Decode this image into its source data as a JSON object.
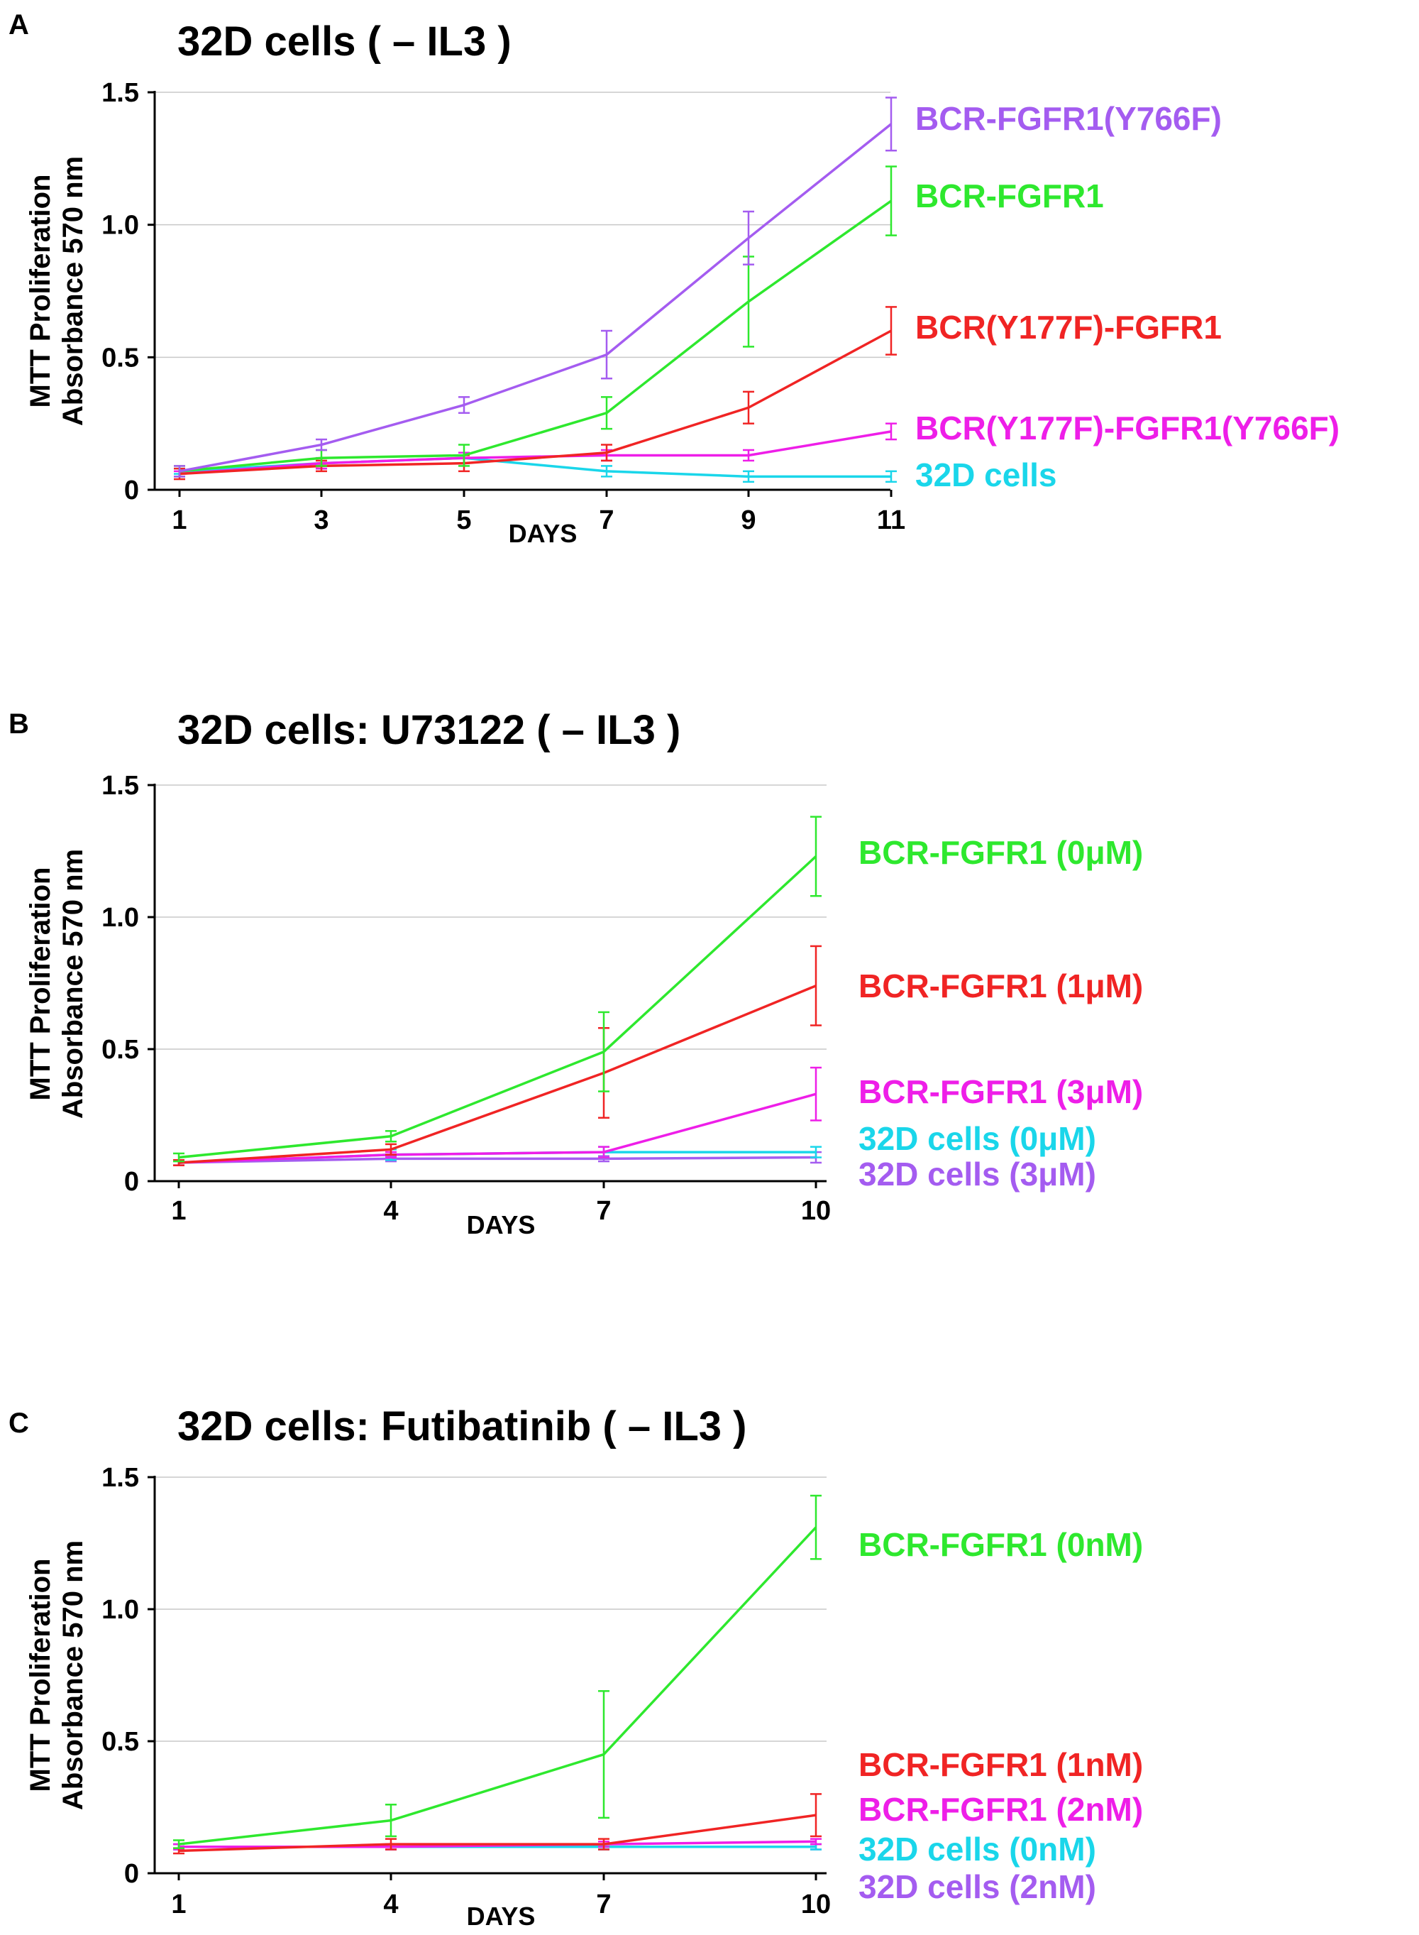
{
  "chart_data": [
    {
      "type": "line",
      "panel_letter": "A",
      "title": "32D cells ( – IL3 )",
      "xlabel": "DAYS",
      "ylabel_lines": [
        "MTT Proliferation",
        "Absorbance 570 nm"
      ],
      "x": [
        1,
        3,
        5,
        7,
        9,
        11
      ],
      "x_ticks": [
        "1",
        "3",
        "5",
        "7",
        "9",
        "11"
      ],
      "ylim": [
        0,
        1.5
      ],
      "y_ticks": [
        "0",
        "0.5",
        "1.0",
        "1.5"
      ],
      "grid": true,
      "series": [
        {
          "name": "BCR-FGFR1(Y766F)",
          "color": "#a45cf0",
          "values": [
            0.07,
            0.17,
            0.32,
            0.51,
            0.95,
            1.38
          ],
          "errors": [
            0.02,
            0.02,
            0.03,
            0.09,
            0.1,
            0.1
          ]
        },
        {
          "name": "BCR-FGFR1",
          "color": "#2ee82e",
          "values": [
            0.07,
            0.12,
            0.13,
            0.29,
            0.71,
            1.09
          ],
          "errors": [
            0.02,
            0.03,
            0.04,
            0.06,
            0.17,
            0.13
          ]
        },
        {
          "name": "BCR(Y177F)-FGFR1",
          "color": "#f02424",
          "values": [
            0.06,
            0.09,
            0.1,
            0.14,
            0.31,
            0.6
          ],
          "errors": [
            0.02,
            0.02,
            0.03,
            0.03,
            0.06,
            0.09
          ]
        },
        {
          "name": "BCR(Y177F)-FGFR1(Y766F)",
          "color": "#ee1ee8",
          "values": [
            0.06,
            0.1,
            0.12,
            0.13,
            0.13,
            0.22
          ],
          "errors": [
            0.01,
            0.02,
            0.02,
            0.02,
            0.02,
            0.03
          ]
        },
        {
          "name": "32D cells",
          "color": "#1ad6ea",
          "values": [
            0.07,
            0.1,
            0.12,
            0.07,
            0.05,
            0.05
          ],
          "errors": [
            0.01,
            0.02,
            0.02,
            0.02,
            0.02,
            0.02
          ]
        }
      ]
    },
    {
      "type": "line",
      "panel_letter": "B",
      "title": "32D cells: U73122  ( – IL3 )",
      "xlabel": "DAYS",
      "ylabel_lines": [
        "MTT Proliferation",
        "Absorbance 570 nm"
      ],
      "x": [
        1,
        4,
        7,
        10
      ],
      "x_ticks": [
        "1",
        "4",
        "7",
        "10"
      ],
      "ylim": [
        0,
        1.5
      ],
      "y_ticks": [
        "0",
        "0.5",
        "1.0",
        "1.5"
      ],
      "grid": true,
      "series": [
        {
          "name": "BCR-FGFR1 (0μM)",
          "color": "#2ee82e",
          "values": [
            0.09,
            0.17,
            0.49,
            1.23
          ],
          "errors": [
            0.015,
            0.02,
            0.15,
            0.15
          ]
        },
        {
          "name": "BCR-FGFR1 (1μM)",
          "color": "#f02424",
          "values": [
            0.07,
            0.12,
            0.41,
            0.74
          ],
          "errors": [
            0.01,
            0.02,
            0.17,
            0.15
          ]
        },
        {
          "name": "BCR-FGFR1 (3μM)",
          "color": "#ee1ee8",
          "values": [
            0.07,
            0.1,
            0.11,
            0.33
          ],
          "errors": [
            0.01,
            0.01,
            0.02,
            0.1
          ]
        },
        {
          "name": "32D cells (0μM)",
          "color": "#1ad6ea",
          "values": [
            0.07,
            0.1,
            0.11,
            0.11
          ],
          "errors": [
            0.01,
            0.02,
            0.02,
            0.02
          ]
        },
        {
          "name": "32D cells (3μM)",
          "color": "#a45cf0",
          "values": [
            0.07,
            0.085,
            0.085,
            0.09
          ],
          "errors": [
            0.01,
            0.01,
            0.01,
            0.02
          ]
        }
      ]
    },
    {
      "type": "line",
      "panel_letter": "C",
      "title": "32D cells: Futibatinib  ( – IL3 )",
      "xlabel": "DAYS",
      "ylabel_lines": [
        "MTT Proliferation",
        "Absorbance 570 nm"
      ],
      "x": [
        1,
        4,
        7,
        10
      ],
      "x_ticks": [
        "1",
        "4",
        "7",
        "10"
      ],
      "ylim": [
        0,
        1.5
      ],
      "y_ticks": [
        "0",
        "0.5",
        "1.0",
        "1.5"
      ],
      "grid": true,
      "series": [
        {
          "name": "BCR-FGFR1 (0nM)",
          "color": "#2ee82e",
          "values": [
            0.11,
            0.2,
            0.45,
            1.31
          ],
          "errors": [
            0.015,
            0.06,
            0.24,
            0.12
          ]
        },
        {
          "name": "BCR-FGFR1 (1nM)",
          "color": "#f02424",
          "values": [
            0.085,
            0.11,
            0.11,
            0.22
          ],
          "errors": [
            0.01,
            0.02,
            0.02,
            0.08
          ]
        },
        {
          "name": "BCR-FGFR1 (2nM)",
          "color": "#ee1ee8",
          "values": [
            0.1,
            0.1,
            0.11,
            0.12
          ],
          "errors": [
            0.01,
            0.01,
            0.01,
            0.01
          ]
        },
        {
          "name": "32D cells (0nM)",
          "color": "#1ad6ea",
          "values": [
            0.1,
            0.1,
            0.1,
            0.1
          ],
          "errors": [
            0.01,
            0.01,
            0.01,
            0.01
          ]
        },
        {
          "name": "32D cells (2nM)",
          "color": "#a45cf0",
          "values": [
            0.1,
            0.1,
            0.1,
            0.1
          ],
          "errors": [
            0.01,
            0.01,
            0.01,
            0.01
          ]
        }
      ]
    }
  ]
}
